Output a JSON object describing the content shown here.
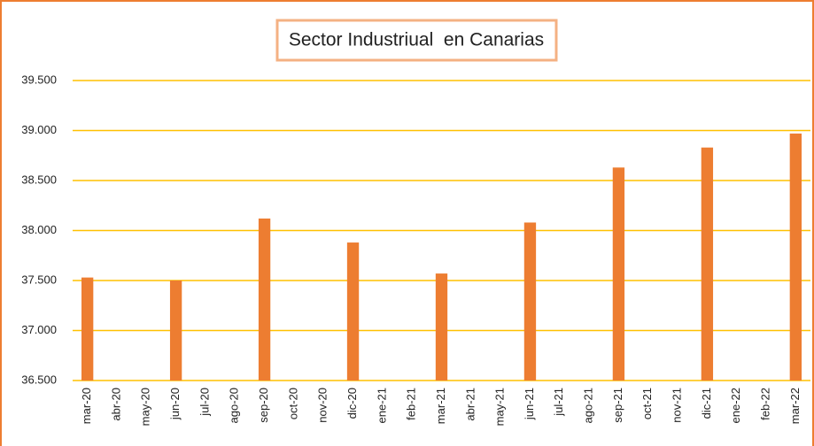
{
  "chart_data": {
    "type": "bar",
    "title": "Sector Industriual  en Canarias",
    "categories": [
      "mar-20",
      "abr-20",
      "may-20",
      "jun-20",
      "jul-20",
      "ago-20",
      "sep-20",
      "oct-20",
      "nov-20",
      "dic-20",
      "ene-21",
      "feb-21",
      "mar-21",
      "abr-21",
      "may-21",
      "jun-21",
      "jul-21",
      "ago-21",
      "sep-21",
      "oct-21",
      "nov-21",
      "dic-21",
      "ene-22",
      "feb-22",
      "mar-22"
    ],
    "values": [
      37530,
      null,
      null,
      37500,
      null,
      null,
      38120,
      null,
      null,
      37880,
      null,
      null,
      37570,
      null,
      null,
      38080,
      null,
      null,
      38630,
      null,
      null,
      38830,
      null,
      null,
      38970
    ],
    "color": "#ed7d31",
    "ylim": [
      36500,
      39500
    ],
    "yticks": [
      {
        "value": 36500,
        "label": "36.500"
      },
      {
        "value": 37000,
        "label": "37.000"
      },
      {
        "value": 37500,
        "label": "37.500"
      },
      {
        "value": 38000,
        "label": "38.000"
      },
      {
        "value": 38500,
        "label": "38.500"
      },
      {
        "value": 39000,
        "label": "39.000"
      },
      {
        "value": 39500,
        "label": "39.500"
      }
    ],
    "grid": true,
    "grid_color": "#ffc000"
  }
}
